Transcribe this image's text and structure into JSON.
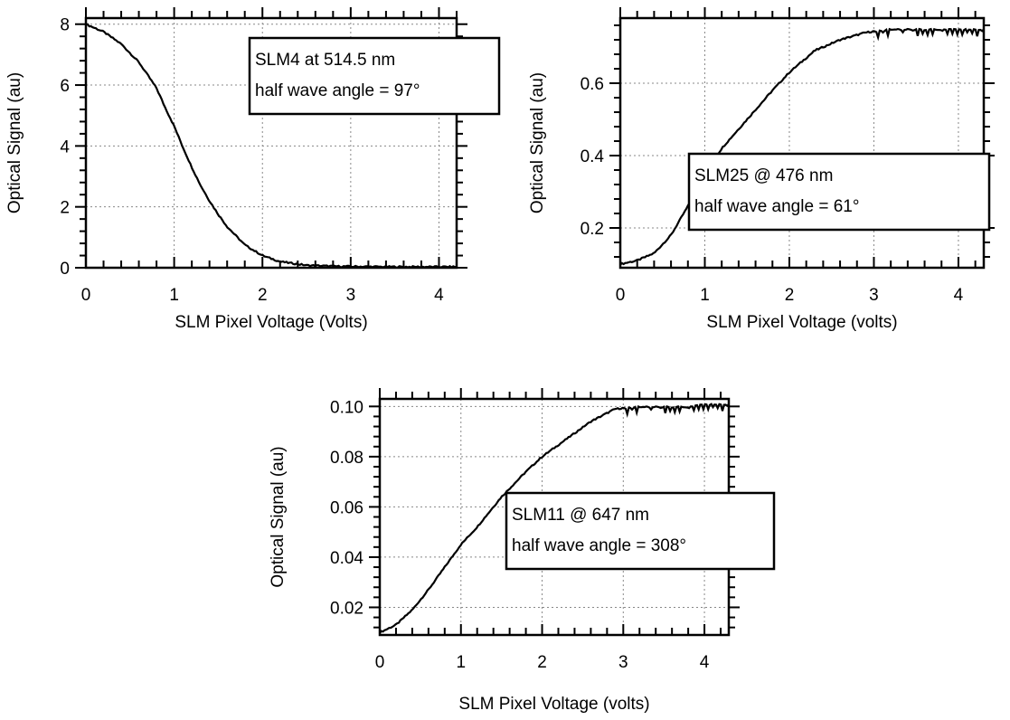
{
  "chart_data": [
    {
      "type": "line",
      "title": "",
      "xlabel": "SLM Pixel Voltage (Volts)",
      "ylabel": "Optical Signal (au)",
      "xlim": [
        0,
        4.2
      ],
      "ylim": [
        0,
        8.2
      ],
      "xticks": [
        0,
        1,
        2,
        3,
        4
      ],
      "yticks": [
        0,
        2,
        4,
        6,
        8
      ],
      "xtick_labels": [
        "0",
        "1",
        "2",
        "3",
        "4"
      ],
      "ytick_labels": [
        "0",
        "2",
        "4",
        "6",
        "8"
      ],
      "grid": true,
      "legend_position": "top-right",
      "annotation": [
        "SLM4 at 514.5 nm",
        "half wave angle = 97°"
      ],
      "series": [
        {
          "x": [
            0,
            0.2,
            0.4,
            0.6,
            0.8,
            0.9,
            1.0,
            1.1,
            1.2,
            1.3,
            1.4,
            1.5,
            1.6,
            1.8,
            2.0,
            2.2,
            2.5,
            2.8,
            3.0,
            3.5,
            4.0,
            4.2
          ],
          "y": [
            8.0,
            7.75,
            7.35,
            6.75,
            5.9,
            5.25,
            4.65,
            3.95,
            3.3,
            2.7,
            2.2,
            1.75,
            1.35,
            0.75,
            0.4,
            0.2,
            0.08,
            0.05,
            0.04,
            0.03,
            0.03,
            0.03
          ]
        }
      ]
    },
    {
      "type": "line",
      "title": "",
      "xlabel": "SLM Pixel Voltage (volts)",
      "ylabel": "Optical Signal (au)",
      "xlim": [
        0,
        4.3
      ],
      "ylim": [
        0.09,
        0.78
      ],
      "xticks": [
        0,
        1,
        2,
        3,
        4
      ],
      "yticks": [
        0.2,
        0.4,
        0.6
      ],
      "xtick_labels": [
        "0",
        "1",
        "2",
        "3",
        "4"
      ],
      "ytick_labels": [
        "0.2",
        "0.4",
        "0.6"
      ],
      "grid": true,
      "legend_position": "right",
      "annotation": [
        "SLM25 @ 476 nm",
        "half wave angle = 61°"
      ],
      "series": [
        {
          "x": [
            0,
            0.2,
            0.4,
            0.6,
            0.8,
            1.0,
            1.2,
            1.5,
            1.8,
            2.0,
            2.3,
            2.6,
            2.9,
            3.2,
            3.5,
            3.8,
            4.0,
            4.3
          ],
          "y": [
            0.1,
            0.11,
            0.13,
            0.18,
            0.26,
            0.35,
            0.42,
            0.5,
            0.58,
            0.63,
            0.69,
            0.72,
            0.74,
            0.75,
            0.75,
            0.75,
            0.75,
            0.75
          ]
        }
      ]
    },
    {
      "type": "line",
      "title": "",
      "xlabel": "SLM Pixel Voltage (volts)",
      "ylabel": "Optical Signal (au)",
      "xlim": [
        0,
        4.3
      ],
      "ylim": [
        0.009,
        0.103
      ],
      "xticks": [
        0,
        1,
        2,
        3,
        4
      ],
      "yticks": [
        0.02,
        0.04,
        0.06,
        0.08,
        0.1
      ],
      "xtick_labels": [
        "0",
        "1",
        "2",
        "3",
        "4"
      ],
      "ytick_labels": [
        "0.02",
        "0.04",
        "0.06",
        "0.08",
        "0.10"
      ],
      "grid": true,
      "legend_position": "right",
      "annotation": [
        "SLM11 @ 647 nm",
        "half wave angle = 308°"
      ],
      "series": [
        {
          "x": [
            0,
            0.2,
            0.4,
            0.6,
            0.8,
            1.0,
            1.2,
            1.5,
            1.8,
            2.0,
            2.3,
            2.6,
            2.9,
            3.2,
            3.5,
            3.8,
            4.0,
            4.3
          ],
          "y": [
            0.01,
            0.013,
            0.019,
            0.027,
            0.036,
            0.045,
            0.052,
            0.064,
            0.074,
            0.08,
            0.087,
            0.094,
            0.099,
            0.1,
            0.1,
            0.1,
            0.101,
            0.101
          ]
        }
      ]
    }
  ]
}
